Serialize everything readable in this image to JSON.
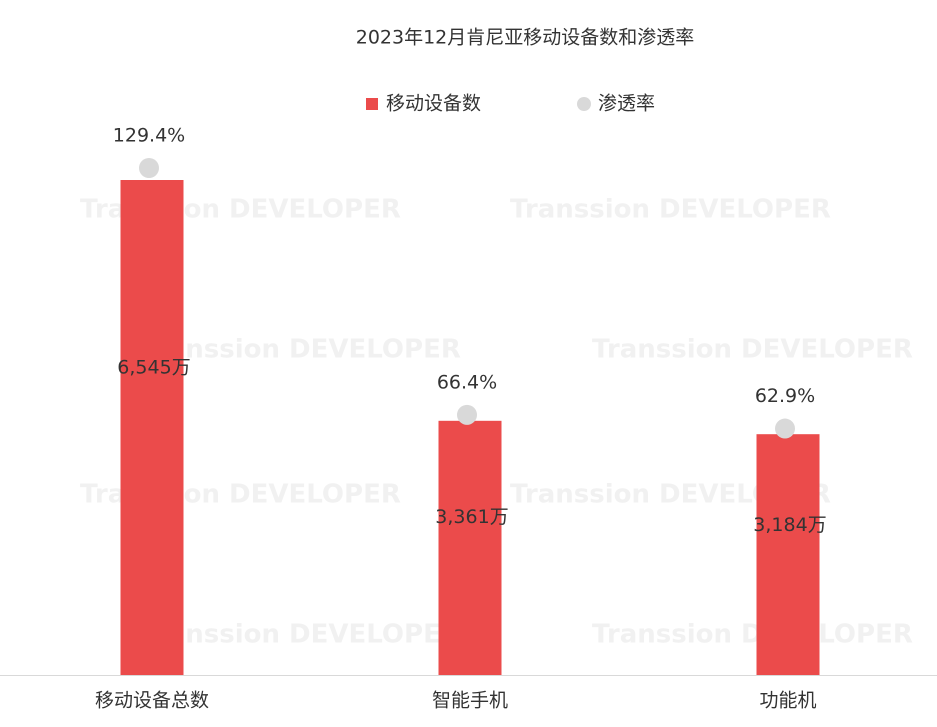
{
  "chart_data": {
    "type": "bar",
    "title": "2023年12月肯尼亚移动设备数和渗透率",
    "categories": [
      "移动设备总数",
      "智能手机",
      "功能机"
    ],
    "series": [
      {
        "name": "移动设备数",
        "type": "bar",
        "color": "#eb4b4b",
        "values": [
          6545,
          3361,
          3184
        ],
        "value_labels": [
          "6,545万",
          "3,361万",
          "3,184万"
        ]
      },
      {
        "name": "渗透率",
        "type": "scatter",
        "axis": "y2",
        "color": "#d9d9d9",
        "values": [
          129.4,
          66.4,
          62.9
        ],
        "value_labels": [
          "129.4%",
          "66.4%",
          "62.9%"
        ]
      }
    ],
    "legend": "top"
  },
  "watermark": "Transsion DEVELOPER"
}
